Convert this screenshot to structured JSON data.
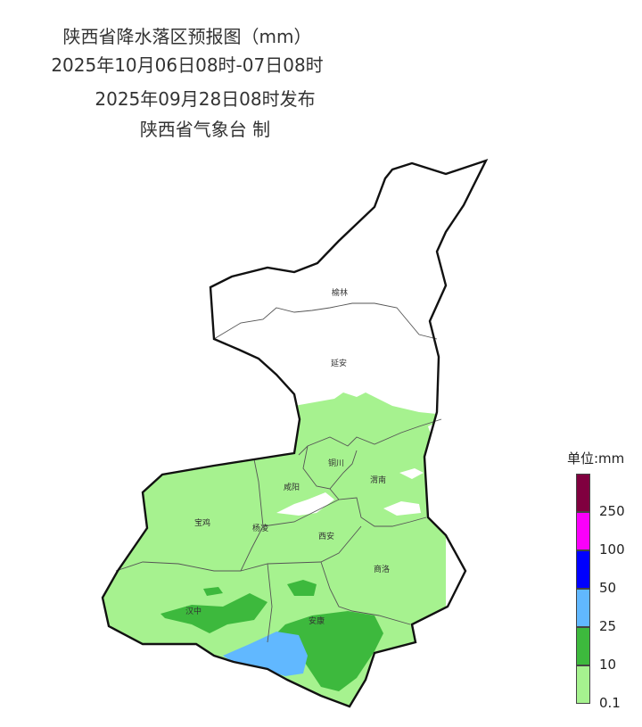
{
  "header": {
    "title": "陕西省降水落区预报图（mm）",
    "valid_period": "2025年10月06日08时-07日08时",
    "issued": "2025年09月28日08时发布",
    "producer": "陕西省气象台 制"
  },
  "map": {
    "cities": [
      "榆林",
      "延安",
      "铜川",
      "渭南",
      "咸阳",
      "宝鸡",
      "杨凌",
      "西安",
      "商洛",
      "汉中",
      "安康"
    ]
  },
  "legend": {
    "title": "单位:mm",
    "levels": [
      {
        "label": "250",
        "color": "#80003f"
      },
      {
        "label": "100",
        "color": "#fa00fa"
      },
      {
        "label": "50",
        "color": "#0000fe"
      },
      {
        "label": "25",
        "color": "#61b8ff"
      },
      {
        "label": "10",
        "color": "#3db93d"
      },
      {
        "label": "0.1",
        "color": "#a6f28f"
      }
    ]
  }
}
